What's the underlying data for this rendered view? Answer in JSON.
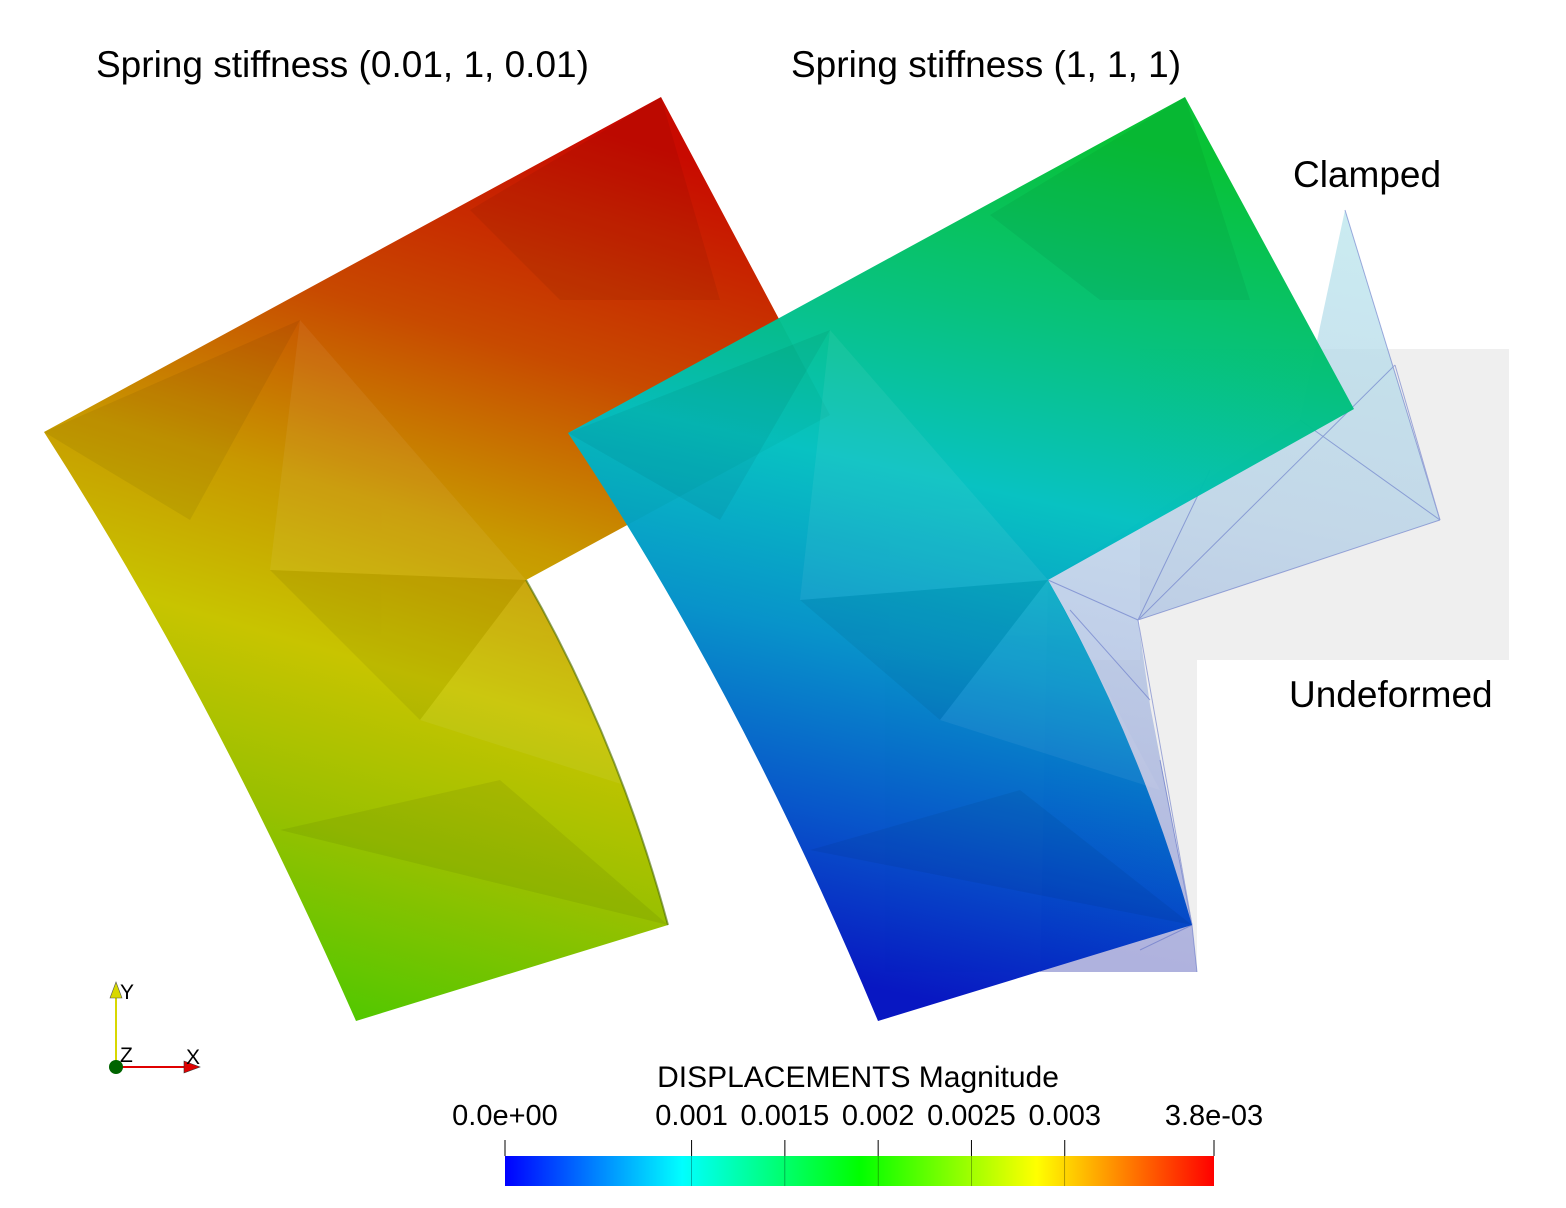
{
  "titles": {
    "left": "Spring stiffness (0.01, 1, 0.01)",
    "right": "Spring stiffness (1, 1, 1)"
  },
  "annotations": {
    "clamped": "Clamped",
    "undeformed": "Undeformed"
  },
  "colorbar": {
    "title": "DISPLACEMENTS Magnitude",
    "min": 0.0,
    "max": 0.0038,
    "min_label": "0.0e+00",
    "max_label": "3.8e-03",
    "ticks": [
      {
        "value": 0.001,
        "label": "0.001"
      },
      {
        "value": 0.0015,
        "label": "0.0015"
      },
      {
        "value": 0.002,
        "label": "0.002"
      },
      {
        "value": 0.0025,
        "label": "0.0025"
      },
      {
        "value": 0.003,
        "label": "0.003"
      }
    ],
    "colors": [
      "#0000ff",
      "#00ffff",
      "#00ff00",
      "#ffff00",
      "#ff0000"
    ]
  },
  "axes_triad": {
    "x": "X",
    "y": "Y",
    "z": "Z"
  }
}
